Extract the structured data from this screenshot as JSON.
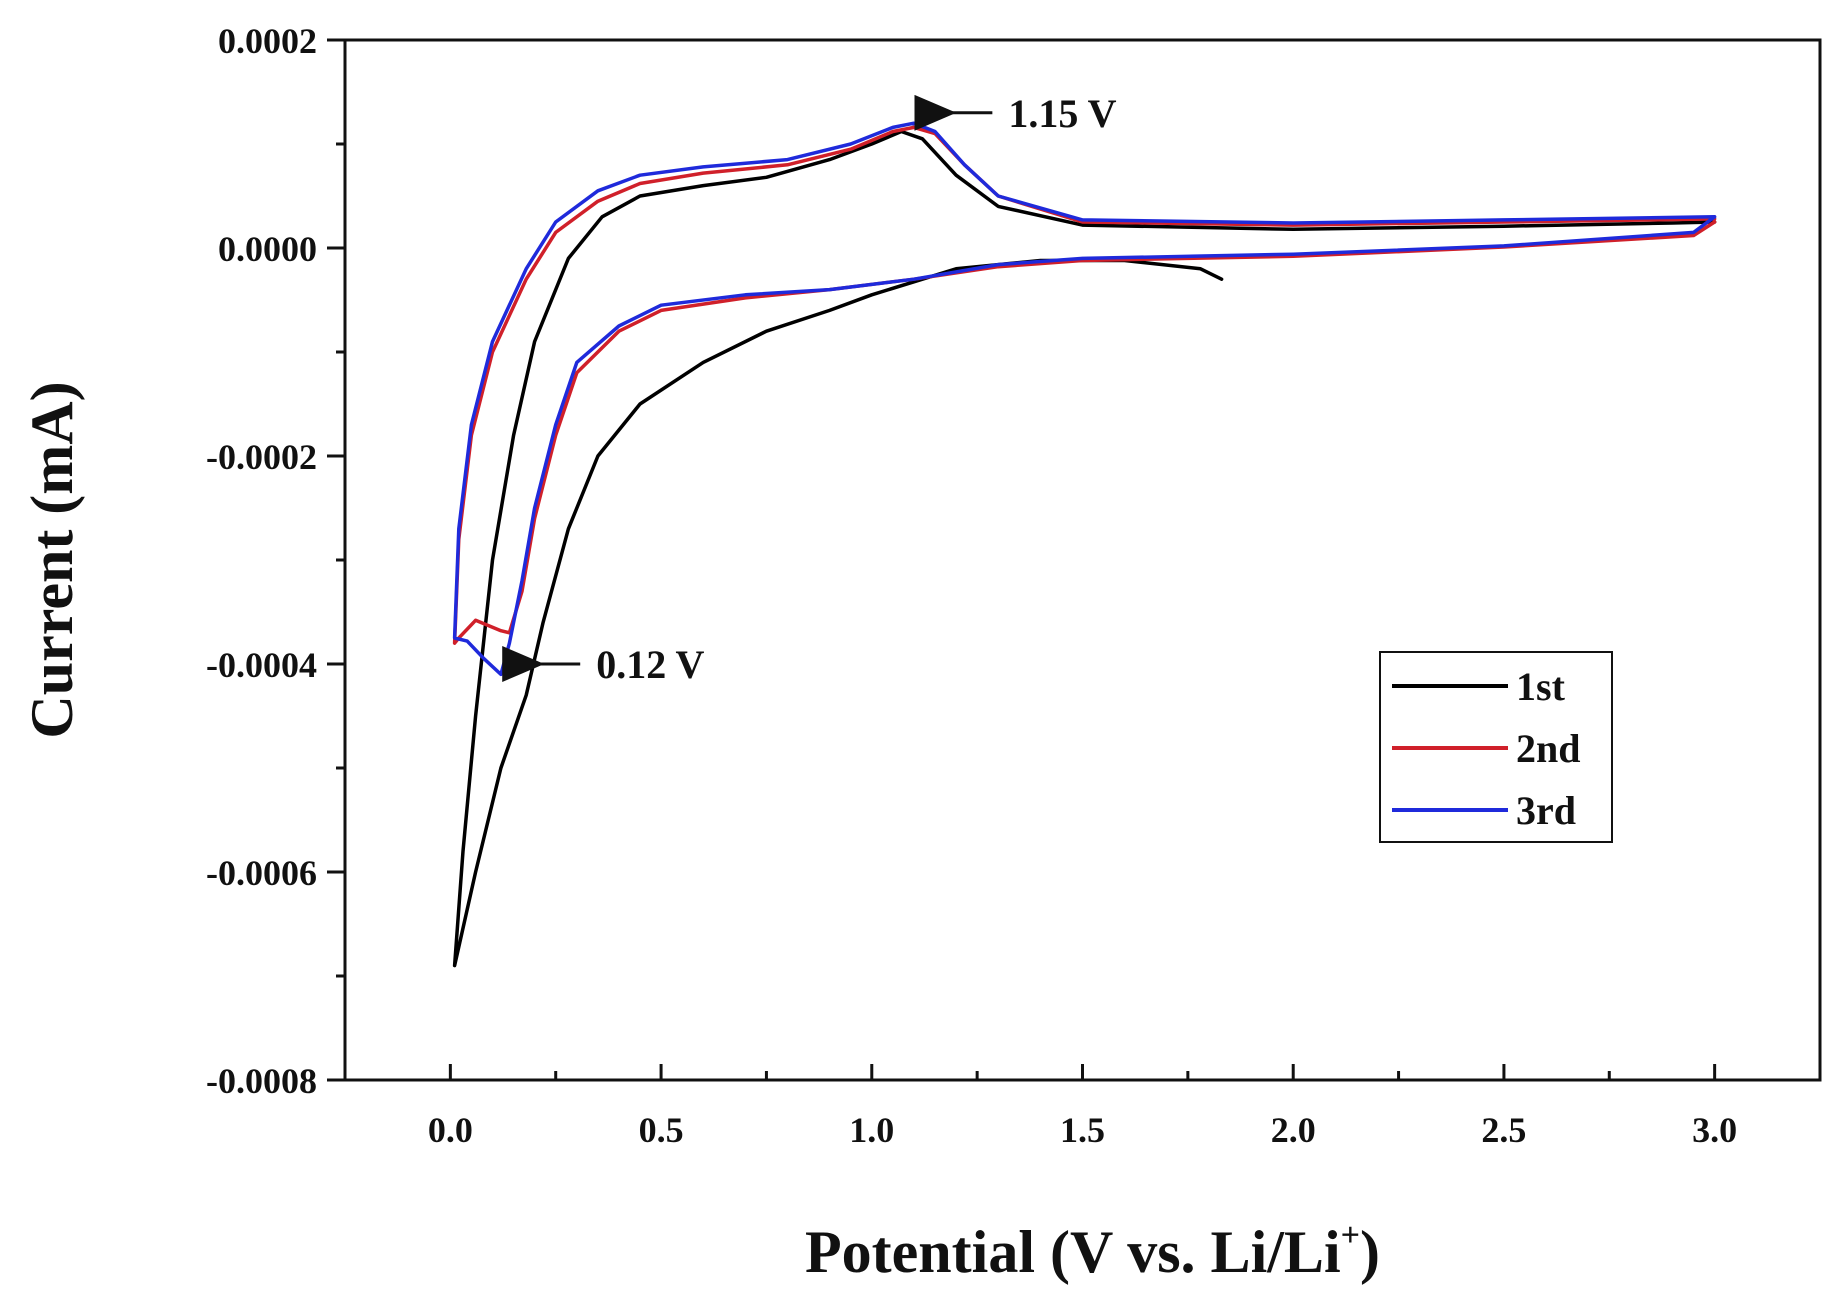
{
  "chart_data": {
    "type": "line",
    "title": "",
    "xlabel": "Potential (V vs. Li/Li",
    "xlabel_sup": "+",
    "xlabel_close": ")",
    "ylabel": "Current (mA)",
    "xlim": [
      -0.25,
      3.25
    ],
    "ylim": [
      -0.0008,
      0.0002
    ],
    "xticks": [
      0.0,
      0.5,
      1.0,
      1.5,
      2.0,
      2.5,
      3.0
    ],
    "xtick_labels": [
      "0.0",
      "0.5",
      "1.0",
      "1.5",
      "2.0",
      "2.5",
      "3.0"
    ],
    "yticks": [
      0.0002,
      0.0,
      -0.0002,
      -0.0004,
      -0.0006,
      -0.0008
    ],
    "ytick_labels": [
      "0.0002",
      "0.0000",
      "-0.0002",
      "-0.0004",
      "-0.0006",
      "-0.0008"
    ],
    "grid": false,
    "legend_position": "lower-right",
    "annotations": [
      {
        "text": "1.15 V",
        "x": 1.15,
        "y": 0.00013,
        "points_to": [
          1.12,
          0.00013
        ]
      },
      {
        "text": "0.12 V",
        "x": 0.2,
        "y": -0.0004,
        "points_to": [
          0.18,
          -0.0004
        ]
      }
    ],
    "series": [
      {
        "name": "1st",
        "color": "#000000",
        "points": [
          [
            1.83,
            -3e-05
          ],
          [
            1.78,
            -2e-05
          ],
          [
            1.6,
            -1.2e-05
          ],
          [
            1.4,
            -1.2e-05
          ],
          [
            1.2,
            -2e-05
          ],
          [
            1.0,
            -4.5e-05
          ],
          [
            0.9,
            -6e-05
          ],
          [
            0.75,
            -8e-05
          ],
          [
            0.6,
            -0.00011
          ],
          [
            0.45,
            -0.00015
          ],
          [
            0.35,
            -0.0002
          ],
          [
            0.28,
            -0.00027
          ],
          [
            0.22,
            -0.00036
          ],
          [
            0.18,
            -0.00043
          ],
          [
            0.12,
            -0.0005
          ],
          [
            0.06,
            -0.0006
          ],
          [
            0.01,
            -0.00069
          ],
          [
            0.03,
            -0.00058
          ],
          [
            0.06,
            -0.00045
          ],
          [
            0.1,
            -0.0003
          ],
          [
            0.15,
            -0.00018
          ],
          [
            0.2,
            -9e-05
          ],
          [
            0.28,
            -1e-05
          ],
          [
            0.36,
            3e-05
          ],
          [
            0.45,
            5e-05
          ],
          [
            0.6,
            6e-05
          ],
          [
            0.75,
            6.8e-05
          ],
          [
            0.9,
            8.5e-05
          ],
          [
            1.0,
            0.0001
          ],
          [
            1.07,
            0.000112
          ],
          [
            1.12,
            0.000105
          ],
          [
            1.2,
            7e-05
          ],
          [
            1.3,
            4e-05
          ],
          [
            1.5,
            2.2e-05
          ],
          [
            2.0,
            1.8e-05
          ],
          [
            2.5,
            2.1e-05
          ],
          [
            2.9,
            2.4e-05
          ],
          [
            3.0,
            2.5e-05
          ]
        ]
      },
      {
        "name": "2nd",
        "color": "#d0202a",
        "points": [
          [
            3.0,
            2.5e-05
          ],
          [
            2.95,
            1.2e-05
          ],
          [
            2.5,
            1e-06
          ],
          [
            2.0,
            -8e-06
          ],
          [
            1.5,
            -1.2e-05
          ],
          [
            1.3,
            -1.8e-05
          ],
          [
            1.1,
            -3e-05
          ],
          [
            0.9,
            -4e-05
          ],
          [
            0.7,
            -4.8e-05
          ],
          [
            0.5,
            -6e-05
          ],
          [
            0.4,
            -8e-05
          ],
          [
            0.3,
            -0.00012
          ],
          [
            0.25,
            -0.00018
          ],
          [
            0.2,
            -0.00026
          ],
          [
            0.17,
            -0.00033
          ],
          [
            0.14,
            -0.00037
          ],
          [
            0.12,
            -0.000368
          ],
          [
            0.06,
            -0.000358
          ],
          [
            0.02,
            -0.000375
          ],
          [
            0.01,
            -0.00038
          ],
          [
            0.02,
            -0.00028
          ],
          [
            0.05,
            -0.00018
          ],
          [
            0.1,
            -0.0001
          ],
          [
            0.18,
            -3e-05
          ],
          [
            0.25,
            1.5e-05
          ],
          [
            0.35,
            4.5e-05
          ],
          [
            0.45,
            6.2e-05
          ],
          [
            0.6,
            7.2e-05
          ],
          [
            0.8,
            8e-05
          ],
          [
            0.95,
            9.5e-05
          ],
          [
            1.05,
            0.000112
          ],
          [
            1.1,
            0.000116
          ],
          [
            1.15,
            0.00011
          ],
          [
            1.22,
            8e-05
          ],
          [
            1.3,
            5e-05
          ],
          [
            1.5,
            2.5e-05
          ],
          [
            2.0,
            2.2e-05
          ],
          [
            2.5,
            2.5e-05
          ],
          [
            3.0,
            2.8e-05
          ]
        ]
      },
      {
        "name": "3rd",
        "color": "#1f2adb",
        "points": [
          [
            3.0,
            3e-05
          ],
          [
            2.95,
            1.5e-05
          ],
          [
            2.5,
            2e-06
          ],
          [
            2.0,
            -6e-06
          ],
          [
            1.5,
            -1e-05
          ],
          [
            1.3,
            -1.6e-05
          ],
          [
            1.1,
            -3e-05
          ],
          [
            0.9,
            -4e-05
          ],
          [
            0.7,
            -4.5e-05
          ],
          [
            0.5,
            -5.5e-05
          ],
          [
            0.4,
            -7.5e-05
          ],
          [
            0.3,
            -0.00011
          ],
          [
            0.25,
            -0.00017
          ],
          [
            0.2,
            -0.00025
          ],
          [
            0.17,
            -0.00032
          ],
          [
            0.14,
            -0.00038
          ],
          [
            0.12,
            -0.00041
          ],
          [
            0.08,
            -0.000395
          ],
          [
            0.04,
            -0.000378
          ],
          [
            0.01,
            -0.000375
          ],
          [
            0.02,
            -0.00027
          ],
          [
            0.05,
            -0.00017
          ],
          [
            0.1,
            -9e-05
          ],
          [
            0.18,
            -2e-05
          ],
          [
            0.25,
            2.5e-05
          ],
          [
            0.35,
            5.5e-05
          ],
          [
            0.45,
            7e-05
          ],
          [
            0.6,
            7.8e-05
          ],
          [
            0.8,
            8.5e-05
          ],
          [
            0.95,
            0.0001
          ],
          [
            1.05,
            0.000116
          ],
          [
            1.1,
            0.00012
          ],
          [
            1.15,
            0.000112
          ],
          [
            1.22,
            8e-05
          ],
          [
            1.3,
            5e-05
          ],
          [
            1.5,
            2.7e-05
          ],
          [
            2.0,
            2.4e-05
          ],
          [
            2.5,
            2.7e-05
          ],
          [
            3.0,
            3e-05
          ]
        ]
      }
    ]
  }
}
